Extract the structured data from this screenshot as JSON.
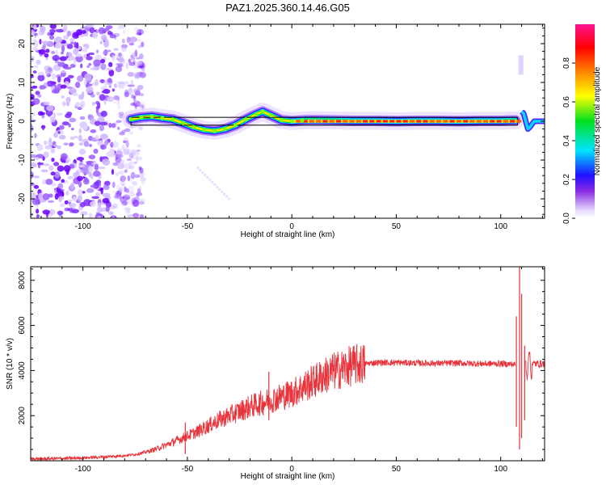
{
  "title": "PAZ1.2025.360.14.46.G05",
  "chart_data": [
    {
      "type": "heatmap",
      "name": "spectrogram",
      "xlabel": "Height of straight line (km)",
      "ylabel": "Frequency (Hz)",
      "xlim": [
        -125,
        121
      ],
      "ylim": [
        -25,
        25
      ],
      "xticks": [
        -100,
        -50,
        0,
        50,
        100
      ],
      "yticks": [
        -20,
        -10,
        0,
        10,
        20
      ],
      "noise_region_km": [
        -125,
        -75
      ],
      "ridge": {
        "x": [
          -77,
          -72,
          -67,
          -62,
          -57,
          -52,
          -47,
          -42,
          -37,
          -32,
          -27,
          -22,
          -17,
          -14,
          -10,
          -5,
          0,
          5,
          10,
          20,
          30,
          40,
          50,
          60,
          70,
          80,
          90,
          100,
          107
        ],
        "y": [
          0.5,
          1.0,
          1.2,
          0.8,
          0.5,
          -0.5,
          -1.5,
          -2.2,
          -2.5,
          -2.0,
          -1.0,
          0.5,
          1.8,
          2.5,
          1.5,
          0.3,
          0.0,
          0.2,
          0.3,
          0.2,
          0.1,
          0.1,
          0.0,
          0.1,
          0.1,
          0.0,
          0.1,
          0.1,
          0.2
        ]
      },
      "tail": {
        "x": [
          110,
          111,
          112,
          113,
          114,
          116,
          118,
          121
        ],
        "y": [
          2.5,
          2.0,
          0.0,
          -2.0,
          -1.5,
          0.0,
          0.0,
          0.0
        ]
      },
      "flat_line_km": [
        -77,
        108
      ],
      "flat_line_hz": [
        -0.8,
        0.8
      ],
      "streak": {
        "x": [
          -45,
          -30
        ],
        "y": [
          -12,
          -20
        ]
      },
      "colorbar": {
        "label": "Normalized spectral amplitude",
        "ticks": [
          "0.0",
          "0.2",
          "0.4",
          "0.6",
          "0.8"
        ],
        "range": [
          0,
          1
        ]
      }
    },
    {
      "type": "line",
      "name": "snr",
      "xlabel": "Height of straight line (km)",
      "ylabel": "SNR (10 * v/v)",
      "xlim": [
        -125,
        121
      ],
      "ylim": [
        0,
        8600
      ],
      "xticks": [
        -100,
        -50,
        0,
        50,
        100
      ],
      "yticks": [
        2000,
        4000,
        6000,
        8000
      ],
      "color": "#e8333a",
      "series": [
        {
          "name": "SNR",
          "x": [
            -125,
            -110,
            -100,
            -90,
            -80,
            -75,
            -70,
            -65,
            -60,
            -55,
            -50,
            -45,
            -40,
            -35,
            -30,
            -25,
            -20,
            -15,
            -10,
            -5,
            0,
            5,
            10,
            15,
            20,
            25,
            30,
            35,
            40,
            50,
            60,
            70,
            80,
            90,
            100,
            105,
            107
          ],
          "values": [
            80,
            100,
            130,
            170,
            230,
            280,
            380,
            520,
            700,
            900,
            1100,
            1300,
            1550,
            1800,
            2000,
            2200,
            2400,
            2550,
            2700,
            2850,
            3000,
            3250,
            3500,
            3750,
            3950,
            4100,
            4250,
            4300,
            4350,
            4350,
            4330,
            4320,
            4330,
            4300,
            4300,
            4280,
            4270
          ]
        }
      ],
      "spikes": [
        {
          "x": -51,
          "values": [
            300,
            1700
          ]
        },
        {
          "x": -11,
          "values": [
            1800,
            3950
          ]
        },
        {
          "x": 107.5,
          "values": [
            1500,
            6400
          ]
        },
        {
          "x": 109,
          "values": [
            500,
            8600
          ]
        },
        {
          "x": 110,
          "values": [
            1000,
            7400
          ]
        },
        {
          "x": 111.5,
          "values": [
            1800,
            5100
          ]
        }
      ]
    }
  ]
}
